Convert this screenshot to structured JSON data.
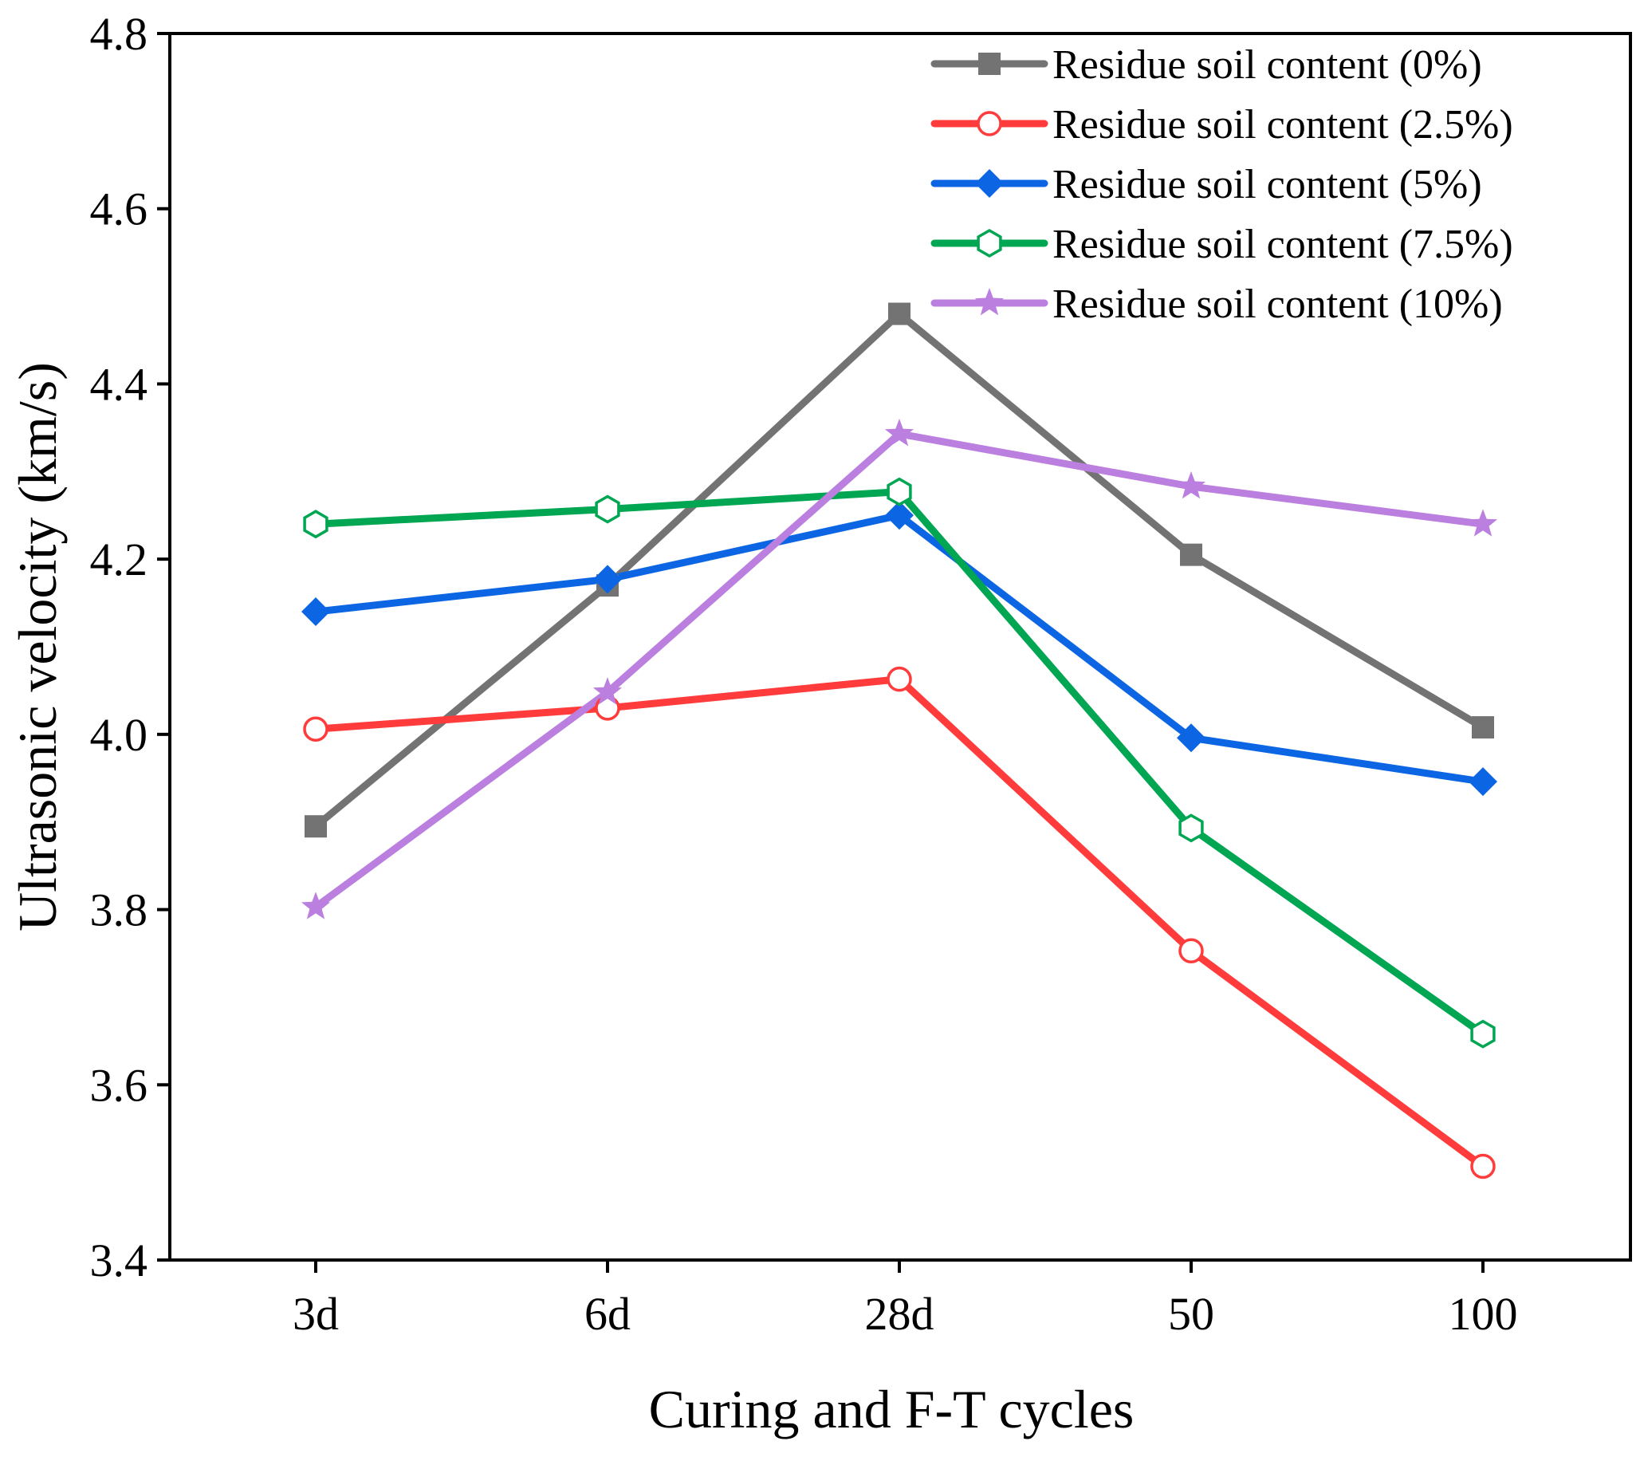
{
  "chart_data": {
    "type": "line",
    "title": "",
    "xlabel": "Curing and F-T cycles",
    "ylabel": "Ultrasonic velocity (km/s)",
    "categories": [
      "3d",
      "6d",
      "28d",
      "50",
      "100"
    ],
    "ylim": [
      3.4,
      4.8
    ],
    "yticks": [
      "3.4",
      "3.6",
      "3.8",
      "4.0",
      "4.2",
      "4.4",
      "4.6",
      "4.8"
    ],
    "grid": false,
    "legend_position": "top-right",
    "series": [
      {
        "name": "Residue soil content (0%)",
        "color": "#737373",
        "marker": "square",
        "values": [
          3.895,
          4.17,
          4.48,
          4.205,
          4.008
        ]
      },
      {
        "name": "Residue soil content (2.5%)",
        "color": "#ff3b3b",
        "marker": "circle-open",
        "values": [
          4.006,
          4.03,
          4.063,
          3.753,
          3.507
        ]
      },
      {
        "name": "Residue soil content (5%)",
        "color": "#0c66e4",
        "marker": "diamond",
        "values": [
          4.14,
          4.177,
          4.25,
          3.996,
          3.946
        ]
      },
      {
        "name": "Residue soil content (7.5%)",
        "color": "#00a651",
        "marker": "hexagon-open",
        "values": [
          4.24,
          4.257,
          4.277,
          3.893,
          3.658
        ]
      },
      {
        "name": "Residue soil content (10%)",
        "color": "#bb7fe0",
        "marker": "star",
        "values": [
          3.803,
          4.048,
          4.343,
          4.283,
          4.24
        ]
      }
    ]
  }
}
